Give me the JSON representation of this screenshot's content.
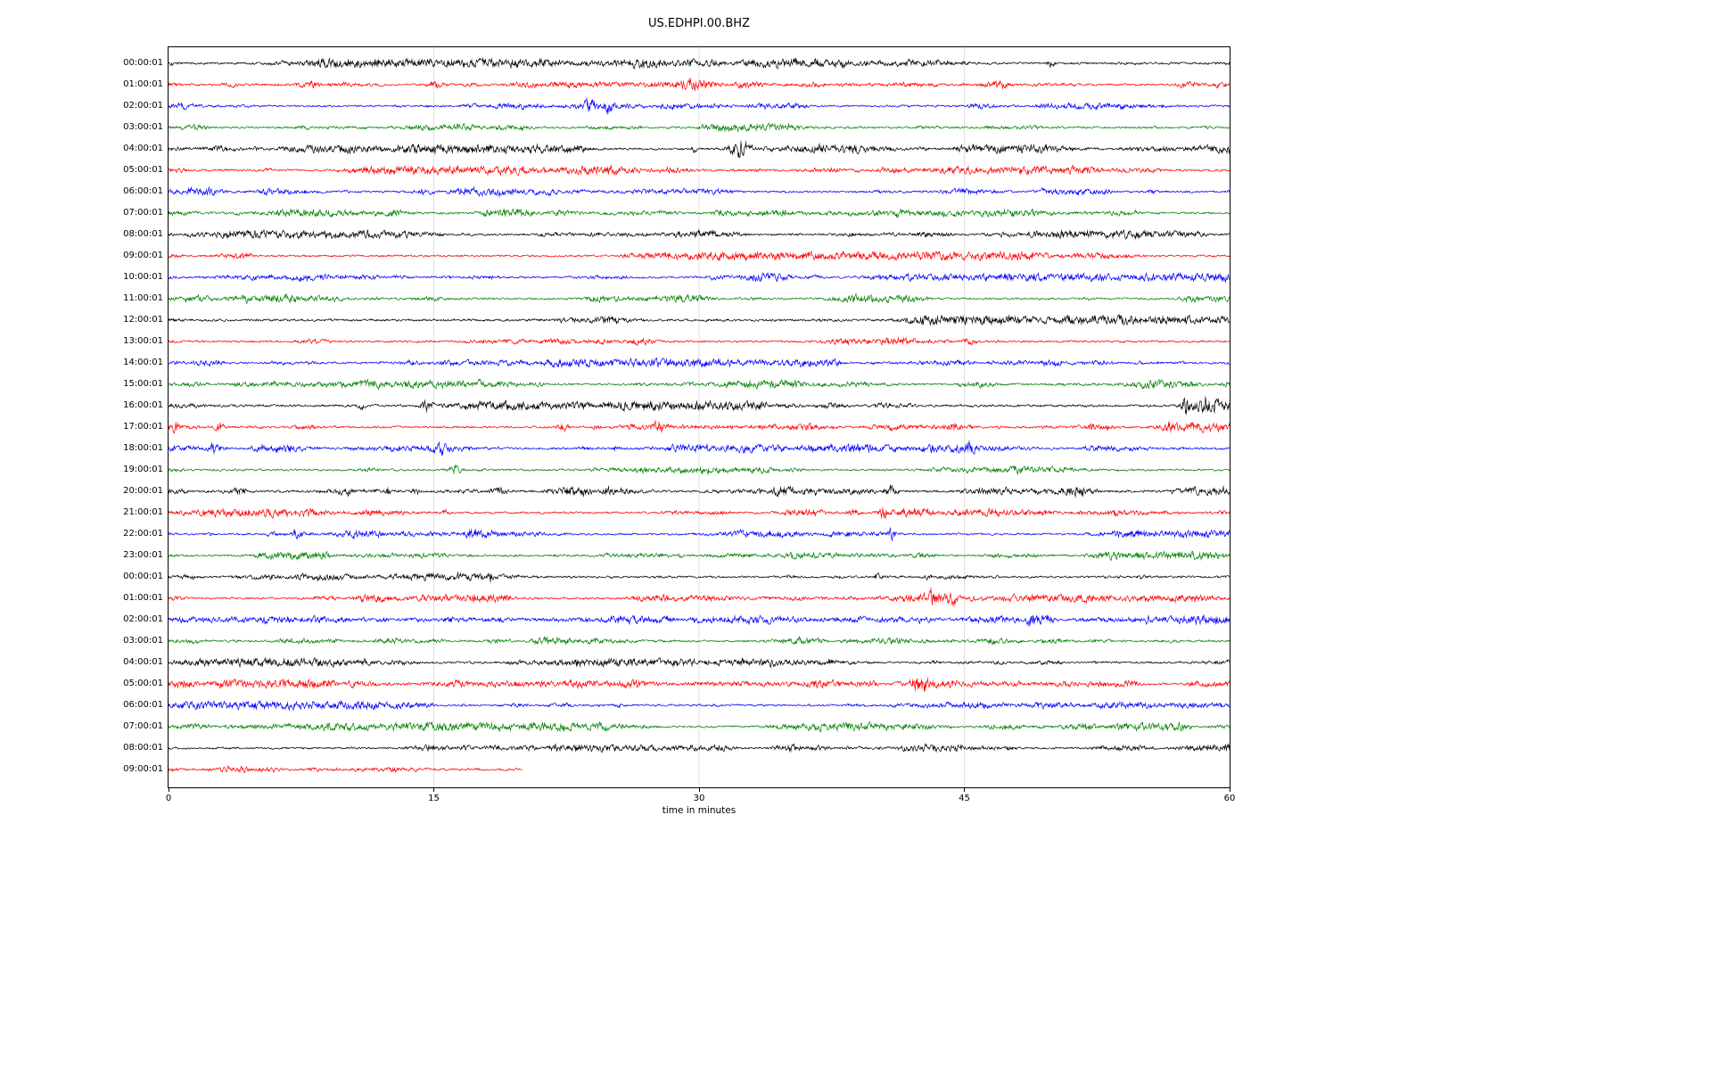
{
  "chart_data": {
    "type": "line",
    "plot_kind": "helicorder-seismogram",
    "title": "US.EDHPI.00.BHZ",
    "xlabel": "time in minutes",
    "x_range": [
      0,
      60
    ],
    "x_ticks": [
      0,
      15,
      30,
      45,
      60
    ],
    "grid": "vertical-only",
    "legend": "none",
    "colors": {
      "black": "#000000",
      "red": "#ff0000",
      "blue": "#0000ff",
      "green": "#008000"
    },
    "trace_color_cycle": [
      "black",
      "red",
      "blue",
      "green"
    ],
    "rows": [
      {
        "label": "00:00:01",
        "color": "black",
        "end": 60,
        "noise": 1.1,
        "events": [
          [
            49.9,
            4,
            0.3
          ]
        ]
      },
      {
        "label": "01:00:01",
        "color": "red",
        "end": 60,
        "noise": 1.0,
        "events": [
          [
            8.2,
            3,
            0.4
          ],
          [
            15.2,
            3,
            0.8
          ],
          [
            20.5,
            2.5,
            0.4
          ],
          [
            29.8,
            5,
            1.0
          ]
        ]
      },
      {
        "label": "02:00:01",
        "color": "blue",
        "end": 60,
        "noise": 1.0,
        "events": [
          [
            23.8,
            6,
            0.4
          ],
          [
            24.9,
            5,
            0.3
          ]
        ]
      },
      {
        "label": "03:00:01",
        "color": "green",
        "end": 60,
        "noise": 1.0,
        "events": []
      },
      {
        "label": "04:00:01",
        "color": "black",
        "end": 60,
        "noise": 1.1,
        "events": [
          [
            29.7,
            7,
            0.15
          ],
          [
            32.3,
            10,
            0.8
          ],
          [
            36,
            2,
            3
          ]
        ]
      },
      {
        "label": "05:00:01",
        "color": "red",
        "end": 60,
        "noise": 1.0,
        "events": []
      },
      {
        "label": "06:00:01",
        "color": "blue",
        "end": 60,
        "noise": 1.0,
        "events": []
      },
      {
        "label": "07:00:01",
        "color": "green",
        "end": 60,
        "noise": 1.0,
        "events": []
      },
      {
        "label": "08:00:01",
        "color": "black",
        "end": 60,
        "noise": 1.0,
        "events": []
      },
      {
        "label": "09:00:01",
        "color": "red",
        "end": 60,
        "noise": 1.0,
        "events": []
      },
      {
        "label": "10:00:01",
        "color": "blue",
        "end": 60,
        "noise": 1.0,
        "events": []
      },
      {
        "label": "11:00:01",
        "color": "green",
        "end": 60,
        "noise": 1.0,
        "events": []
      },
      {
        "label": "12:00:01",
        "color": "black",
        "end": 60,
        "noise": 1.15,
        "events": []
      },
      {
        "label": "13:00:01",
        "color": "red",
        "end": 60,
        "noise": 1.0,
        "events": []
      },
      {
        "label": "14:00:01",
        "color": "blue",
        "end": 60,
        "noise": 1.0,
        "events": []
      },
      {
        "label": "15:00:01",
        "color": "green",
        "end": 60,
        "noise": 1.0,
        "events": []
      },
      {
        "label": "16:00:01",
        "color": "black",
        "end": 60,
        "noise": 1.15,
        "events": [
          [
            10.9,
            5,
            0.2
          ],
          [
            14.6,
            6,
            0.5
          ],
          [
            57.5,
            12,
            0.3
          ],
          [
            58.8,
            6,
            1.0
          ]
        ]
      },
      {
        "label": "17:00:01",
        "color": "red",
        "end": 60,
        "noise": 1.05,
        "events": [
          [
            0.4,
            5,
            0.4
          ],
          [
            2.9,
            5,
            0.4
          ],
          [
            22.3,
            4,
            0.4
          ],
          [
            27.8,
            6,
            0.6
          ],
          [
            52.2,
            4,
            0.3
          ],
          [
            56.5,
            4,
            0.3
          ]
        ]
      },
      {
        "label": "18:00:01",
        "color": "blue",
        "end": 60,
        "noise": 1.05,
        "events": [
          [
            2.5,
            5,
            0.3
          ],
          [
            15.5,
            5,
            0.5
          ],
          [
            25.3,
            4,
            0.3
          ],
          [
            45.3,
            4,
            0.3
          ]
        ]
      },
      {
        "label": "19:00:01",
        "color": "green",
        "end": 60,
        "noise": 1.0,
        "events": [
          [
            16.2,
            4,
            0.6
          ]
        ]
      },
      {
        "label": "20:00:01",
        "color": "black",
        "end": 60,
        "noise": 1.15,
        "events": [
          [
            3.9,
            4,
            0.6
          ],
          [
            12.4,
            6,
            0.15
          ],
          [
            14,
            3,
            0.4
          ],
          [
            34.6,
            5,
            0.8
          ],
          [
            40.9,
            4,
            0.5
          ]
        ]
      },
      {
        "label": "21:00:01",
        "color": "red",
        "end": 60,
        "noise": 1.0,
        "events": [
          [
            15.7,
            4,
            0.3
          ],
          [
            40.4,
            5,
            0.4
          ]
        ]
      },
      {
        "label": "22:00:01",
        "color": "blue",
        "end": 60,
        "noise": 1.0,
        "events": [
          [
            7.2,
            5,
            0.3
          ],
          [
            17.2,
            4,
            0.3
          ],
          [
            40.9,
            6,
            0.4
          ]
        ]
      },
      {
        "label": "23:00:01",
        "color": "green",
        "end": 60,
        "noise": 1.0,
        "events": []
      },
      {
        "label": "00:00:01",
        "color": "black",
        "end": 60,
        "noise": 1.0,
        "events": [
          [
            18.2,
            5,
            0.15
          ],
          [
            40.1,
            3,
            0.3
          ]
        ]
      },
      {
        "label": "01:00:01",
        "color": "red",
        "end": 60,
        "noise": 1.0,
        "events": [
          [
            43.2,
            7,
            0.5
          ],
          [
            44.3,
            6,
            0.4
          ]
        ]
      },
      {
        "label": "02:00:01",
        "color": "blue",
        "end": 60,
        "noise": 1.05,
        "events": [
          [
            48.9,
            7,
            0.6
          ],
          [
            49.7,
            6,
            0.5
          ],
          [
            55.3,
            6,
            0.2
          ]
        ]
      },
      {
        "label": "03:00:01",
        "color": "green",
        "end": 60,
        "noise": 1.0,
        "events": []
      },
      {
        "label": "04:00:01",
        "color": "black",
        "end": 60,
        "noise": 1.0,
        "events": []
      },
      {
        "label": "05:00:01",
        "color": "red",
        "end": 60,
        "noise": 1.0,
        "events": [
          [
            42.5,
            11,
            0.7
          ]
        ]
      },
      {
        "label": "06:00:01",
        "color": "blue",
        "end": 60,
        "noise": 1.0,
        "events": []
      },
      {
        "label": "07:00:01",
        "color": "green",
        "end": 60,
        "noise": 1.0,
        "events": []
      },
      {
        "label": "08:00:01",
        "color": "black",
        "end": 60,
        "noise": 1.0,
        "events": []
      },
      {
        "label": "09:00:01",
        "color": "red",
        "end": 20,
        "noise": 1.1,
        "events": []
      }
    ]
  }
}
